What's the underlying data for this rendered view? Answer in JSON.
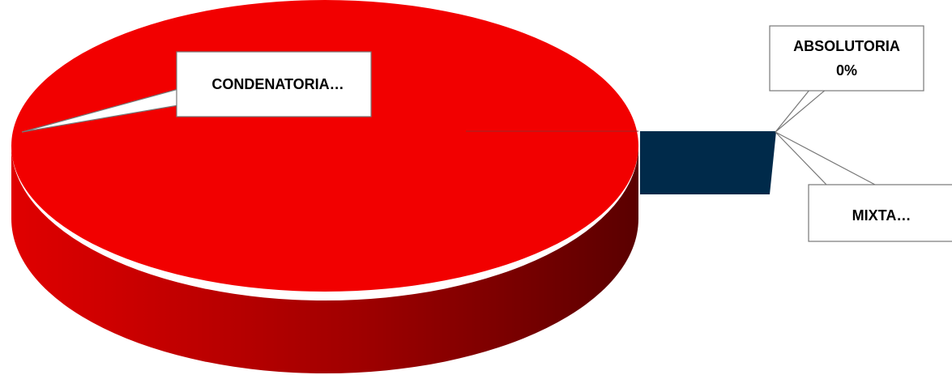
{
  "chart_data": {
    "type": "pie",
    "style": "3d-exploded",
    "slices": [
      {
        "name": "CONDENATORIA",
        "label_lines": [
          "CONDENATORIA…"
        ],
        "value": 98,
        "color": "#f20000",
        "side_color": "#b20000"
      },
      {
        "name": "ABSOLUTORIA",
        "label_lines": [
          "ABSOLUTORIA",
          "0%"
        ],
        "value": 0,
        "color": "#1a3a55",
        "side_color": "#0a2a44"
      },
      {
        "name": "MIXTA",
        "label_lines": [
          "MIXTA…"
        ],
        "value": 2,
        "color": "#002a4a",
        "side_color": "#002a4a"
      }
    ],
    "legend": "none"
  }
}
